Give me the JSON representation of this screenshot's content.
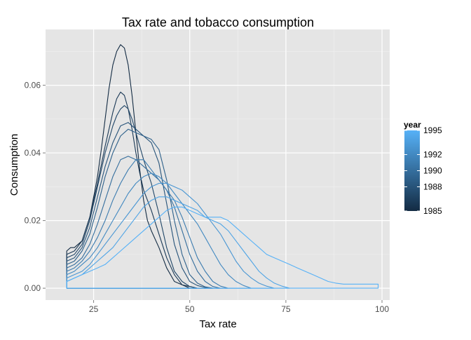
{
  "chart_data": {
    "type": "line",
    "title": "Tax rate and tobacco consumption",
    "xlabel": "Tax rate",
    "ylabel": "Consumption",
    "xlim": [
      12.5,
      102
    ],
    "ylim": [
      -0.0035,
      0.0765
    ],
    "xticks": [
      25,
      50,
      75,
      100
    ],
    "yticks": [
      0.0,
      0.02,
      0.04,
      0.06
    ],
    "xtick_labels": [
      "25",
      "50",
      "75",
      "100"
    ],
    "ytick_labels": [
      "0.00",
      "0.02",
      "0.04",
      "0.06"
    ],
    "grid": true,
    "legend": {
      "title": "year",
      "placement": "right",
      "labels": [
        "1995",
        "1992",
        "1990",
        "1988",
        "1985"
      ],
      "values": [
        1995,
        1992,
        1990,
        1988,
        1985
      ],
      "range": [
        1985,
        1995
      ]
    },
    "color_scale": {
      "low": "#132B43",
      "high": "#56B1F7"
    },
    "series": [
      {
        "year": 1985,
        "x": [
          18,
          19,
          20,
          22,
          24,
          26,
          27,
          28,
          29,
          30,
          31,
          32,
          33,
          34,
          35,
          36,
          37,
          38,
          39,
          40,
          42,
          44,
          46,
          48,
          50,
          52
        ],
        "y": [
          0.011,
          0.012,
          0.012,
          0.014,
          0.021,
          0.033,
          0.041,
          0.05,
          0.059,
          0.066,
          0.07,
          0.072,
          0.071,
          0.066,
          0.057,
          0.046,
          0.035,
          0.026,
          0.02,
          0.017,
          0.012,
          0.006,
          0.002,
          0.001,
          0.0,
          0.0
        ]
      },
      {
        "year": 1986,
        "x": [
          18,
          20,
          22,
          24,
          26,
          28,
          30,
          31,
          32,
          33,
          34,
          35,
          36,
          37,
          38,
          40,
          42,
          44,
          46,
          48,
          50,
          52,
          54
        ],
        "y": [
          0.01,
          0.011,
          0.014,
          0.021,
          0.031,
          0.042,
          0.052,
          0.056,
          0.058,
          0.057,
          0.053,
          0.047,
          0.04,
          0.034,
          0.029,
          0.023,
          0.016,
          0.009,
          0.004,
          0.001,
          0.0005,
          0.0,
          0.0
        ]
      },
      {
        "year": 1987,
        "x": [
          18,
          20,
          22,
          24,
          26,
          28,
          30,
          31,
          32,
          33,
          34,
          35,
          36,
          37,
          38,
          40,
          42,
          44,
          46,
          48,
          50,
          52,
          54
        ],
        "y": [
          0.009,
          0.01,
          0.013,
          0.02,
          0.03,
          0.04,
          0.048,
          0.051,
          0.053,
          0.054,
          0.053,
          0.05,
          0.046,
          0.042,
          0.038,
          0.031,
          0.022,
          0.012,
          0.005,
          0.002,
          0.0005,
          0.0,
          0.0
        ]
      },
      {
        "year": 1988,
        "x": [
          18,
          20,
          22,
          24,
          26,
          28,
          30,
          32,
          34,
          36,
          38,
          40,
          42,
          44,
          46,
          48,
          50,
          52,
          54,
          56
        ],
        "y": [
          0.008,
          0.009,
          0.012,
          0.018,
          0.027,
          0.036,
          0.043,
          0.048,
          0.049,
          0.047,
          0.045,
          0.043,
          0.037,
          0.025,
          0.013,
          0.006,
          0.002,
          0.0008,
          0.0002,
          0.0
        ]
      },
      {
        "year": 1989,
        "x": [
          18,
          20,
          22,
          24,
          26,
          28,
          30,
          32,
          34,
          36,
          38,
          40,
          42,
          44,
          46,
          48,
          50,
          52,
          54,
          56
        ],
        "y": [
          0.007,
          0.008,
          0.011,
          0.016,
          0.024,
          0.033,
          0.04,
          0.045,
          0.047,
          0.046,
          0.045,
          0.044,
          0.041,
          0.032,
          0.02,
          0.01,
          0.004,
          0.0015,
          0.0004,
          0.0
        ]
      },
      {
        "year": 1990,
        "x": [
          18,
          20,
          22,
          24,
          26,
          28,
          30,
          32,
          34,
          36,
          38,
          40,
          42,
          44,
          46,
          48,
          50,
          52,
          54,
          56,
          58
        ],
        "y": [
          0.006,
          0.007,
          0.009,
          0.013,
          0.019,
          0.026,
          0.033,
          0.038,
          0.039,
          0.038,
          0.036,
          0.034,
          0.032,
          0.029,
          0.024,
          0.017,
          0.01,
          0.005,
          0.002,
          0.0005,
          0.0
        ]
      },
      {
        "year": 1991,
        "x": [
          18,
          20,
          22,
          24,
          26,
          28,
          30,
          32,
          34,
          36,
          38,
          40,
          42,
          44,
          46,
          48,
          50,
          52,
          54,
          56,
          58,
          60
        ],
        "y": [
          0.005,
          0.006,
          0.008,
          0.011,
          0.015,
          0.02,
          0.026,
          0.031,
          0.035,
          0.038,
          0.038,
          0.035,
          0.032,
          0.029,
          0.026,
          0.021,
          0.015,
          0.009,
          0.005,
          0.002,
          0.0006,
          0.0
        ]
      },
      {
        "year": 1992,
        "x": [
          18,
          20,
          22,
          24,
          26,
          28,
          30,
          32,
          34,
          36,
          38,
          40,
          42,
          44,
          46,
          48,
          50,
          52,
          54,
          56,
          58,
          60,
          62,
          64,
          66
        ],
        "y": [
          0.004,
          0.005,
          0.007,
          0.009,
          0.012,
          0.016,
          0.02,
          0.024,
          0.028,
          0.031,
          0.033,
          0.034,
          0.033,
          0.031,
          0.028,
          0.025,
          0.022,
          0.019,
          0.015,
          0.011,
          0.007,
          0.004,
          0.002,
          0.0008,
          0.0
        ]
      },
      {
        "year": 1993,
        "x": [
          18,
          20,
          22,
          24,
          26,
          28,
          30,
          32,
          34,
          36,
          38,
          40,
          42,
          44,
          46,
          48,
          50,
          52,
          54,
          56,
          58,
          60,
          62,
          64,
          66,
          68,
          70,
          72
        ],
        "y": [
          0.003,
          0.004,
          0.005,
          0.007,
          0.01,
          0.013,
          0.016,
          0.019,
          0.022,
          0.025,
          0.028,
          0.03,
          0.031,
          0.031,
          0.03,
          0.029,
          0.027,
          0.025,
          0.022,
          0.019,
          0.016,
          0.012,
          0.008,
          0.005,
          0.003,
          0.0015,
          0.0006,
          0.0
        ]
      },
      {
        "year": 1994,
        "x": [
          18,
          20,
          22,
          24,
          26,
          28,
          30,
          32,
          34,
          36,
          38,
          40,
          42,
          44,
          46,
          48,
          50,
          52,
          54,
          56,
          58,
          60,
          62,
          64,
          66,
          68,
          70,
          72,
          74,
          76
        ],
        "y": [
          0.002,
          0.003,
          0.004,
          0.006,
          0.008,
          0.01,
          0.012,
          0.015,
          0.018,
          0.021,
          0.024,
          0.026,
          0.027,
          0.027,
          0.026,
          0.025,
          0.024,
          0.023,
          0.021,
          0.02,
          0.019,
          0.017,
          0.014,
          0.011,
          0.008,
          0.005,
          0.003,
          0.0015,
          0.0006,
          0.0
        ]
      },
      {
        "year": 1995,
        "x": [
          18,
          20,
          22,
          24,
          26,
          28,
          30,
          32,
          34,
          36,
          38,
          40,
          42,
          44,
          46,
          48,
          50,
          52,
          54,
          56,
          58,
          60,
          62,
          64,
          66,
          68,
          70,
          72,
          74,
          76,
          78,
          80,
          82,
          84,
          86,
          88,
          90,
          92,
          94,
          96,
          99
        ],
        "y": [
          0.002,
          0.003,
          0.004,
          0.005,
          0.006,
          0.007,
          0.009,
          0.011,
          0.013,
          0.015,
          0.017,
          0.019,
          0.021,
          0.023,
          0.024,
          0.024,
          0.023,
          0.022,
          0.021,
          0.021,
          0.021,
          0.02,
          0.018,
          0.016,
          0.014,
          0.012,
          0.01,
          0.009,
          0.008,
          0.007,
          0.006,
          0.005,
          0.004,
          0.003,
          0.002,
          0.0015,
          0.0012,
          0.0012,
          0.0012,
          0.0012,
          0.0012
        ]
      }
    ]
  }
}
